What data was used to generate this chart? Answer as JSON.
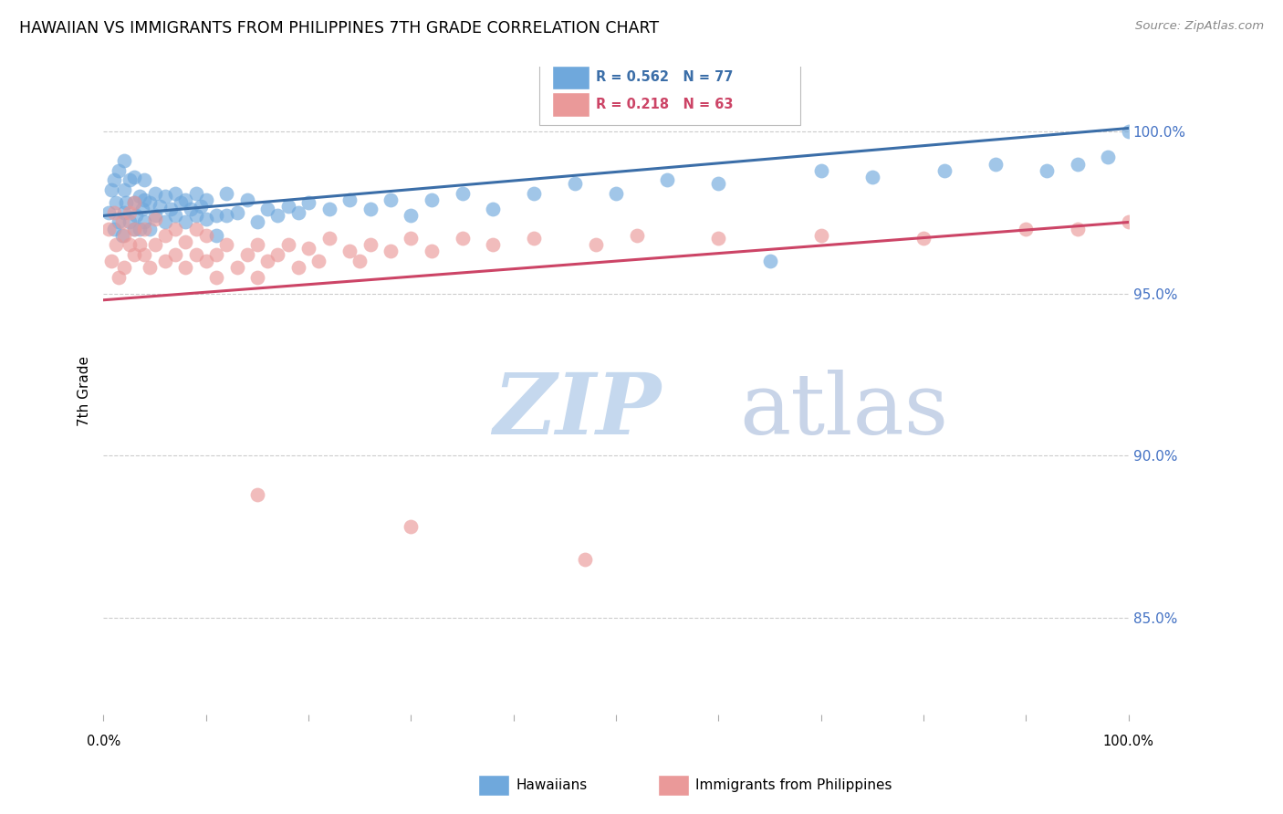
{
  "title": "HAWAIIAN VS IMMIGRANTS FROM PHILIPPINES 7TH GRADE CORRELATION CHART",
  "source": "Source: ZipAtlas.com",
  "ylabel": "7th Grade",
  "R_blue": 0.562,
  "N_blue": 77,
  "R_pink": 0.218,
  "N_pink": 63,
  "blue_color": "#6fa8dc",
  "pink_color": "#ea9999",
  "blue_line_color": "#3b6ea8",
  "pink_line_color": "#cc4466",
  "background": "#ffffff",
  "watermark_color": "#dce8f5",
  "grid_color": "#cccccc",
  "tick_color": "#4472c4",
  "ytick_vals": [
    1.0,
    0.95,
    0.9,
    0.85
  ],
  "ytick_labels": [
    "100.0%",
    "95.0%",
    "90.0%",
    "85.0%"
  ],
  "xlim": [
    0.0,
    1.0
  ],
  "ylim": [
    0.82,
    1.02
  ],
  "blue_x": [
    0.005,
    0.008,
    0.01,
    0.01,
    0.012,
    0.015,
    0.015,
    0.018,
    0.02,
    0.02,
    0.02,
    0.022,
    0.025,
    0.025,
    0.03,
    0.03,
    0.03,
    0.032,
    0.035,
    0.035,
    0.038,
    0.04,
    0.04,
    0.04,
    0.045,
    0.045,
    0.05,
    0.05,
    0.055,
    0.06,
    0.06,
    0.065,
    0.07,
    0.07,
    0.075,
    0.08,
    0.08,
    0.085,
    0.09,
    0.09,
    0.095,
    0.1,
    0.1,
    0.11,
    0.11,
    0.12,
    0.12,
    0.13,
    0.14,
    0.15,
    0.16,
    0.17,
    0.18,
    0.19,
    0.2,
    0.22,
    0.24,
    0.26,
    0.28,
    0.3,
    0.32,
    0.35,
    0.38,
    0.42,
    0.46,
    0.5,
    0.55,
    0.6,
    0.65,
    0.7,
    0.75,
    0.82,
    0.87,
    0.92,
    0.95,
    0.98,
    1.0
  ],
  "blue_y": [
    0.975,
    0.982,
    0.97,
    0.985,
    0.978,
    0.972,
    0.988,
    0.968,
    0.975,
    0.982,
    0.991,
    0.978,
    0.972,
    0.985,
    0.97,
    0.978,
    0.986,
    0.974,
    0.97,
    0.98,
    0.976,
    0.972,
    0.979,
    0.985,
    0.97,
    0.978,
    0.974,
    0.981,
    0.977,
    0.972,
    0.98,
    0.976,
    0.974,
    0.981,
    0.978,
    0.972,
    0.979,
    0.976,
    0.974,
    0.981,
    0.977,
    0.973,
    0.979,
    0.974,
    0.968,
    0.974,
    0.981,
    0.975,
    0.979,
    0.972,
    0.976,
    0.974,
    0.977,
    0.975,
    0.978,
    0.976,
    0.979,
    0.976,
    0.979,
    0.974,
    0.979,
    0.981,
    0.976,
    0.981,
    0.984,
    0.981,
    0.985,
    0.984,
    0.96,
    0.988,
    0.986,
    0.988,
    0.99,
    0.988,
    0.99,
    0.992,
    1.0
  ],
  "pink_x": [
    0.005,
    0.008,
    0.01,
    0.012,
    0.015,
    0.018,
    0.02,
    0.02,
    0.025,
    0.025,
    0.03,
    0.03,
    0.03,
    0.035,
    0.04,
    0.04,
    0.045,
    0.05,
    0.05,
    0.06,
    0.06,
    0.07,
    0.07,
    0.08,
    0.08,
    0.09,
    0.09,
    0.1,
    0.1,
    0.11,
    0.11,
    0.12,
    0.13,
    0.14,
    0.15,
    0.15,
    0.16,
    0.17,
    0.18,
    0.19,
    0.2,
    0.21,
    0.22,
    0.24,
    0.25,
    0.26,
    0.28,
    0.3,
    0.32,
    0.35,
    0.38,
    0.42,
    0.48,
    0.52,
    0.6,
    0.7,
    0.8,
    0.9,
    0.95,
    1.0,
    0.15,
    0.3,
    0.47
  ],
  "pink_y": [
    0.97,
    0.96,
    0.975,
    0.965,
    0.955,
    0.972,
    0.968,
    0.958,
    0.965,
    0.975,
    0.962,
    0.97,
    0.978,
    0.965,
    0.962,
    0.97,
    0.958,
    0.965,
    0.973,
    0.96,
    0.968,
    0.962,
    0.97,
    0.958,
    0.966,
    0.962,
    0.97,
    0.96,
    0.968,
    0.962,
    0.955,
    0.965,
    0.958,
    0.962,
    0.965,
    0.955,
    0.96,
    0.962,
    0.965,
    0.958,
    0.964,
    0.96,
    0.967,
    0.963,
    0.96,
    0.965,
    0.963,
    0.967,
    0.963,
    0.967,
    0.965,
    0.967,
    0.965,
    0.968,
    0.967,
    0.968,
    0.967,
    0.97,
    0.97,
    0.972,
    0.888,
    0.878,
    0.868
  ]
}
